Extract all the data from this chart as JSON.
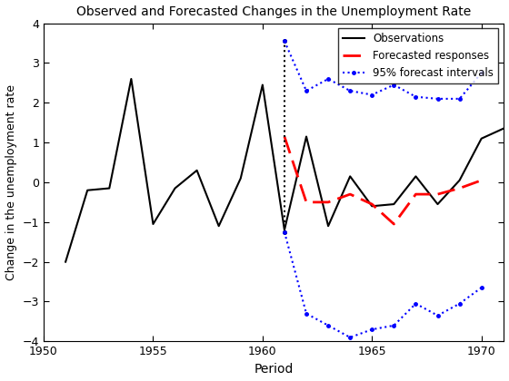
{
  "title": "Observed and Forecasted Changes in the Unemployment Rate",
  "xlabel": "Period",
  "ylabel": "Change in the unemployment rate",
  "xlim": [
    1950,
    1971
  ],
  "ylim": [
    -4,
    4
  ],
  "xticks": [
    1950,
    1955,
    1960,
    1965,
    1970
  ],
  "yticks": [
    -4,
    -3,
    -2,
    -1,
    0,
    1,
    2,
    3,
    4
  ],
  "obs_x": [
    1951,
    1952,
    1953,
    1954,
    1955,
    1956,
    1957,
    1958,
    1959,
    1960,
    1961,
    1962,
    1963,
    1964,
    1965,
    1966,
    1967,
    1968,
    1969,
    1970,
    1971
  ],
  "obs_y": [
    -2.0,
    -0.2,
    -0.15,
    2.6,
    -1.05,
    -0.15,
    0.3,
    -1.1,
    0.1,
    2.45,
    -1.2,
    1.15,
    -1.1,
    0.15,
    -0.6,
    -0.55,
    0.15,
    -0.55,
    0.05,
    1.1,
    1.35
  ],
  "forecast_x": [
    1961,
    1962,
    1963,
    1964,
    1965,
    1966,
    1967,
    1968,
    1969,
    1970
  ],
  "forecast_y": [
    1.15,
    -0.5,
    -0.5,
    -0.3,
    -0.55,
    -1.05,
    -0.3,
    -0.3,
    -0.15,
    0.05
  ],
  "ci_upper_x": [
    1961,
    1962,
    1963,
    1964,
    1965,
    1966,
    1967,
    1968,
    1969,
    1970
  ],
  "ci_upper_y": [
    3.55,
    2.3,
    2.6,
    2.3,
    2.2,
    2.45,
    2.15,
    2.1,
    2.1,
    2.75
  ],
  "ci_lower_x": [
    1961,
    1962,
    1963,
    1964,
    1965,
    1966,
    1967,
    1968,
    1969,
    1970
  ],
  "ci_lower_y": [
    -1.25,
    -3.3,
    -3.6,
    -3.9,
    -3.7,
    -3.6,
    -3.05,
    -3.35,
    -3.05,
    -2.65
  ],
  "obs_color": "#000000",
  "forecast_color": "#ff0000",
  "ci_color": "#0000ff"
}
